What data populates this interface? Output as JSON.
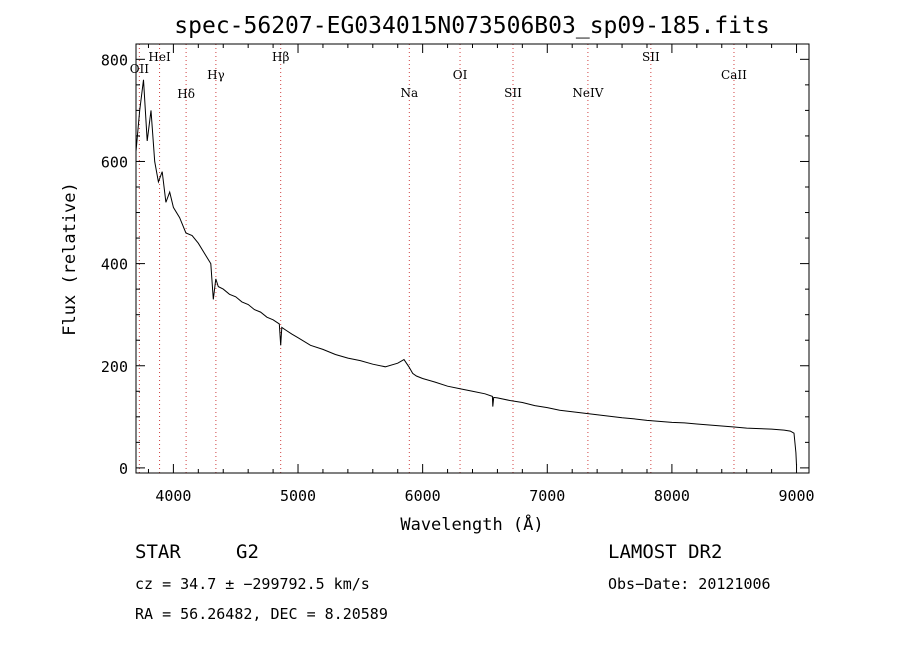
{
  "chart_data": {
    "type": "line",
    "title": "spec-56207-EG034015N073506B03_sp09-185.fits",
    "xlabel": "Wavelength (Å)",
    "ylabel": "Flux (relative)",
    "xlim": [
      3700,
      9100
    ],
    "ylim": [
      -10,
      830
    ],
    "xticks": [
      4000,
      5000,
      6000,
      7000,
      8000,
      9000
    ],
    "yticks": [
      0,
      200,
      400,
      600,
      800
    ],
    "grid": false,
    "series": [
      {
        "color": "#000000",
        "x": [
          3700,
          3730,
          3760,
          3790,
          3820,
          3850,
          3880,
          3910,
          3940,
          3970,
          4000,
          4050,
          4100,
          4150,
          4200,
          4250,
          4300,
          4320,
          4340,
          4360,
          4400,
          4450,
          4500,
          4550,
          4600,
          4650,
          4700,
          4750,
          4800,
          4850,
          4861,
          4870,
          4900,
          4950,
          5000,
          5100,
          5200,
          5300,
          5400,
          5500,
          5600,
          5700,
          5800,
          5850,
          5890,
          5920,
          5950,
          6000,
          6100,
          6200,
          6300,
          6400,
          6500,
          6560,
          6563,
          6570,
          6600,
          6700,
          6800,
          6900,
          7000,
          7100,
          7200,
          7300,
          7400,
          7500,
          7600,
          7700,
          7800,
          7900,
          8000,
          8100,
          8200,
          8300,
          8400,
          8500,
          8600,
          8700,
          8800,
          8900,
          8950,
          8980,
          8995,
          9000
        ],
        "y": [
          620,
          700,
          760,
          640,
          700,
          600,
          560,
          580,
          520,
          540,
          510,
          490,
          460,
          455,
          440,
          420,
          400,
          330,
          370,
          355,
          350,
          340,
          335,
          325,
          320,
          310,
          305,
          295,
          290,
          282,
          240,
          275,
          270,
          262,
          255,
          240,
          232,
          222,
          215,
          210,
          203,
          198,
          205,
          212,
          198,
          185,
          180,
          175,
          168,
          160,
          155,
          150,
          145,
          140,
          120,
          138,
          137,
          132,
          128,
          122,
          118,
          113,
          110,
          107,
          104,
          101,
          98,
          96,
          93,
          91,
          89,
          88,
          86,
          84,
          82,
          80,
          78,
          77,
          76,
          74,
          72,
          68,
          30,
          5
        ]
      }
    ],
    "lines": [
      {
        "label": "OII",
        "x": 3727
      },
      {
        "label": "HeI",
        "x": 3889
      },
      {
        "label": "Hδ",
        "x": 4102
      },
      {
        "label": "Hγ",
        "x": 4341
      },
      {
        "label": "Hβ",
        "x": 4861
      },
      {
        "label": "Na",
        "x": 5893
      },
      {
        "label": "OI",
        "x": 6300
      },
      {
        "label": "SII",
        "x": 6725
      },
      {
        "label": "NeIV",
        "x": 7326
      },
      {
        "label": "SII",
        "x": 7831
      },
      {
        "label": "CaII",
        "x": 8498
      }
    ],
    "line_color": "#d04040",
    "series_color": "#000000"
  },
  "info": {
    "class": "STAR",
    "subclass": "G2",
    "survey": "LAMOST DR2",
    "cz": "cz = 34.7 ± −299792.5 km/s",
    "obsdate": "Obs−Date: 20121006",
    "radec": "RA =  56.26482, DEC =   8.20589"
  }
}
